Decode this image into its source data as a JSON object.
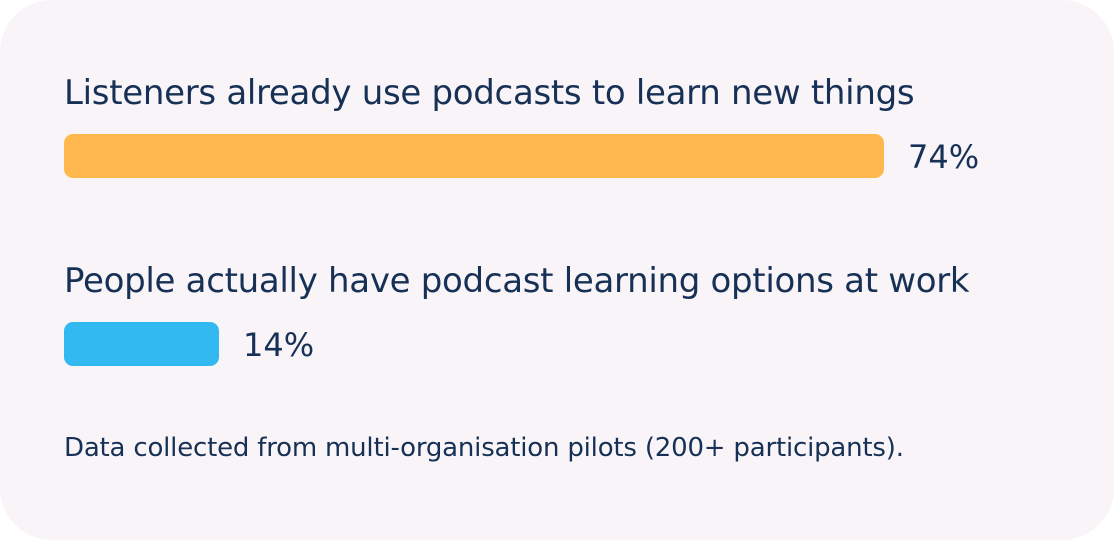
{
  "chart_data": {
    "type": "bar",
    "orientation": "horizontal",
    "categories": [
      "Listeners already use podcasts to learn new things",
      "People actually have podcast learning options at work"
    ],
    "values": [
      74,
      14
    ],
    "value_labels": [
      "74%",
      "14%"
    ],
    "unit": "%",
    "colors": [
      "#FFB84D",
      "#33B9F2"
    ],
    "xlim": [
      0,
      100
    ],
    "grid": false,
    "legend": "none"
  },
  "footnote": "Data collected from multi-organisation pilots (200+ participants).",
  "colors": {
    "background": "#F8F4F7",
    "text": "#173156"
  }
}
